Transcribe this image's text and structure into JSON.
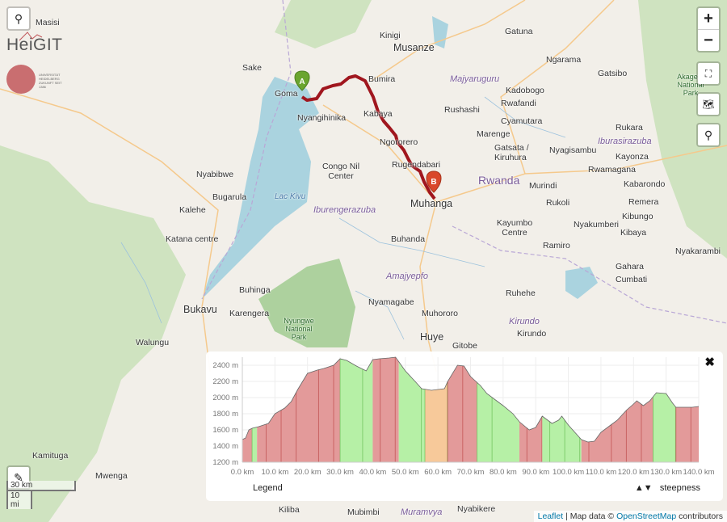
{
  "map": {
    "labels": {
      "places": [
        "Masisi",
        "Sake",
        "Goma",
        "Kinigi",
        "Musanze",
        "Gatuna",
        "Nyangihinika",
        "Kabaya",
        "Ngororero",
        "Rugendabari",
        "Muhanga",
        "Rushashi",
        "Kadobogo",
        "Rwafandi",
        "Cyamutara",
        "Marenge",
        "Gatsata / Kiruhura",
        "Nyagisambu",
        "Murindi",
        "Rwamagana",
        "Gatsibo",
        "Ngarama",
        "Rukara",
        "Kayonza",
        "Kabarondo",
        "Remera",
        "Kibungo",
        "Kibaya",
        "Nyabibwe",
        "Bugarula",
        "Kalehe",
        "Congo Nil Center",
        "Katana centre",
        "Buhanda",
        "Rukoli",
        "Kayumbo Centre",
        "Ramiro",
        "Nyakumberi",
        "Nyakarambi",
        "Gahara",
        "Cumbati",
        "Ruhehe",
        "Buhinga",
        "Karengera",
        "Bukavu",
        "Nyamagabe",
        "Muhororo",
        "Huye",
        "Kirundo",
        "Walungu",
        "Kamituga",
        "Mwenga",
        "Kiliba",
        "Mubimbi",
        "Nyabikere",
        "Gitobe",
        "Rwanda",
        "Bumira"
      ],
      "regions": [
        "Majyaruguru",
        "Iburasirazuba",
        "Iburengerazuba",
        "Amajyepfo",
        "Muramvya",
        "Kirundo"
      ],
      "water": [
        "Lac Kivu"
      ],
      "parks": [
        "Nyungwe National Park",
        "Akagera National Park"
      ]
    },
    "markers": {
      "start": "A",
      "end": "B"
    },
    "scale": {
      "metric": "30 km",
      "imperial": "10 mi"
    },
    "attribution": {
      "leaflet": "Leaflet",
      "sep": " | Map data © ",
      "osm": "OpenStreetMap",
      "suffix": " contributors"
    },
    "logo": {
      "text": "HeiGIT",
      "subtitle": "UNIVERSITÄT HEIDELBERG ZUKUNFT SEIT 1386"
    },
    "zoom_in": "+",
    "zoom_out": "−",
    "colors": {
      "route": "#a0161e",
      "start_marker": "#6aa52f",
      "end_marker": "#d9472b",
      "water": "#aad3df",
      "forest": "#add19e"
    }
  },
  "elevation": {
    "legend": "Legend",
    "steepness_arrows": "▲▼",
    "steepness_label": "steepness",
    "close": "✖"
  },
  "chart_data": {
    "type": "area",
    "title": "",
    "xlabel": "",
    "ylabel": "",
    "xlim": [
      0,
      140
    ],
    "ylim": [
      1200,
      2500
    ],
    "xticks": [
      "0.0 km",
      "10.0 km",
      "20.0 km",
      "30.0 km",
      "40.0 km",
      "50.0 km",
      "60.0 km",
      "70.0 km",
      "80.0 km",
      "90.0 km",
      "100.0 km",
      "110.0 km",
      "120.0 km",
      "130.0 km",
      "140.0 km"
    ],
    "yticks": [
      "1200 m",
      "1400 m",
      "1600 m",
      "1800 m",
      "2000 m",
      "2200 m",
      "2400 m"
    ],
    "x_km": [
      0,
      1,
      2,
      3,
      5,
      8,
      10,
      13,
      15,
      17,
      20,
      23,
      25,
      28,
      30,
      32,
      35,
      38,
      40,
      42,
      45,
      47,
      50,
      53,
      55,
      58,
      62,
      63,
      66,
      68,
      70,
      73,
      75,
      78,
      80,
      83,
      85,
      88,
      90,
      92,
      95,
      97,
      98,
      100,
      104,
      106,
      108,
      110,
      113,
      115,
      118,
      120,
      121,
      123,
      125,
      127,
      130,
      132,
      133,
      136,
      138,
      140
    ],
    "elevation_m": [
      1480,
      1500,
      1600,
      1620,
      1640,
      1680,
      1800,
      1870,
      1950,
      2100,
      2300,
      2340,
      2360,
      2400,
      2480,
      2460,
      2390,
      2330,
      2470,
      2480,
      2490,
      2500,
      2330,
      2200,
      2110,
      2090,
      2110,
      2200,
      2400,
      2390,
      2260,
      2150,
      2050,
      1960,
      1900,
      1800,
      1700,
      1600,
      1630,
      1770,
      1680,
      1720,
      1770,
      1660,
      1480,
      1450,
      1460,
      1570,
      1660,
      1720,
      1850,
      1920,
      1960,
      1900,
      1960,
      2060,
      2050,
      1930,
      1880,
      1880,
      1880,
      1890
    ],
    "steepness_segments": [
      {
        "from": 0,
        "to": 3,
        "class": "up"
      },
      {
        "from": 3,
        "to": 4.5,
        "class": "down"
      },
      {
        "from": 4.5,
        "to": 30,
        "class": "up"
      },
      {
        "from": 30,
        "to": 40,
        "class": "down"
      },
      {
        "from": 40,
        "to": 48,
        "class": "up"
      },
      {
        "from": 48,
        "to": 56,
        "class": "down"
      },
      {
        "from": 56,
        "to": 63,
        "class": "flat"
      },
      {
        "from": 63,
        "to": 72,
        "class": "up"
      },
      {
        "from": 72,
        "to": 85,
        "class": "down"
      },
      {
        "from": 85,
        "to": 92,
        "class": "up"
      },
      {
        "from": 92,
        "to": 104,
        "class": "down"
      },
      {
        "from": 104,
        "to": 126,
        "class": "up"
      },
      {
        "from": 126,
        "to": 133,
        "class": "down"
      },
      {
        "from": 133,
        "to": 140,
        "class": "up"
      }
    ],
    "colors": {
      "up": "#e39a9a",
      "down": "#b6f0a6",
      "flat": "#f7c99a"
    }
  }
}
